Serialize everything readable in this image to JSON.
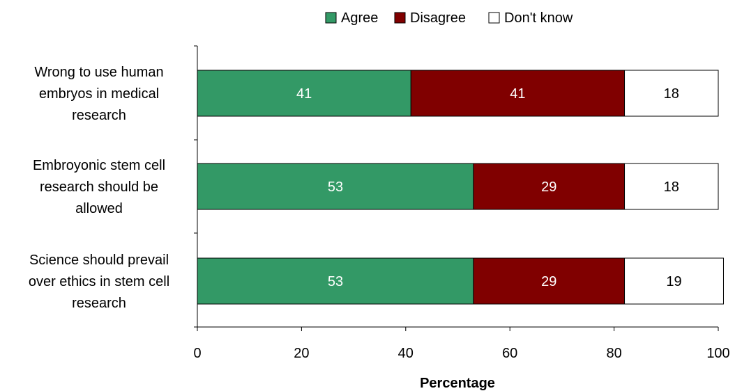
{
  "chart_data": {
    "type": "bar",
    "orientation": "horizontal",
    "stacked": true,
    "categories": [
      [
        "Wrong to use human",
        "embryos in medical",
        "research"
      ],
      [
        "Embroyonic stem cell",
        "research should be",
        "allowed"
      ],
      [
        "Science should prevail",
        "over ethics in stem cell",
        "research"
      ]
    ],
    "series": [
      {
        "name": "Agree",
        "color": "#339966",
        "label_color": "#ffffff",
        "values": [
          41,
          53,
          53
        ]
      },
      {
        "name": "Disagree",
        "color": "#800000",
        "label_color": "#ffffff",
        "values": [
          41,
          29,
          29
        ]
      },
      {
        "name": "Don't know",
        "color": "#ffffff",
        "label_color": "#000000",
        "values": [
          18,
          18,
          19
        ]
      }
    ],
    "xlabel": "Percentage",
    "ylabel": "",
    "xlim": [
      0,
      100
    ],
    "xticks": [
      "0",
      "20",
      "40",
      "60",
      "80",
      "100"
    ],
    "grid": false,
    "legend_position": "top"
  }
}
